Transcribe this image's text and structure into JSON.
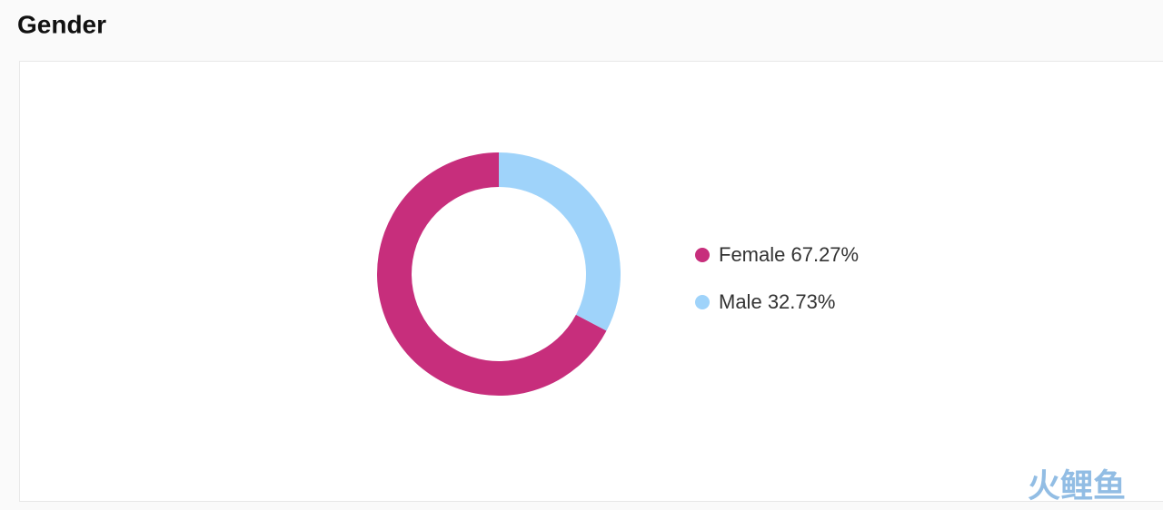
{
  "chart_data": {
    "type": "donut",
    "title": "Gender",
    "categories": [
      "Female",
      "Male"
    ],
    "values": [
      67.27,
      32.73
    ],
    "value_labels": [
      "67.27%",
      "32.73%"
    ],
    "colors": [
      "#c72e7c",
      "#9fd3fa"
    ],
    "legend": "right"
  },
  "watermark": "火鲤鱼"
}
